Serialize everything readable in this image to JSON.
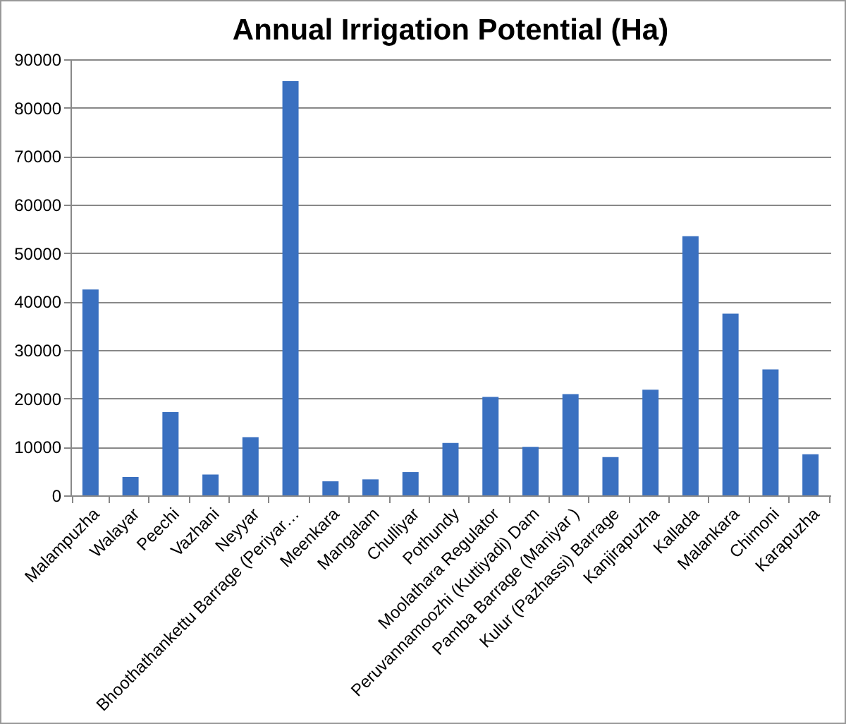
{
  "chart_data": {
    "type": "bar",
    "title": "Annual Irrigation Potential (Ha)",
    "categories": [
      "Malampuzha",
      "Walayar",
      "Peechi",
      "Vazhani",
      "Neyyar",
      "Bhoothathankettu Barrage (Periyar…",
      "Meenkara",
      "Mangalam",
      "Chulliyar",
      "Pothundy",
      "Moolathara Regulator",
      "Peruvannamoozhi (Kuttiyadi) Dam",
      "Pamba Barrage (Maniyar )",
      "Kulur (Pazhassi) Barrage",
      "Kanjirapuzha",
      "Kallada",
      "Malankara",
      "Chimoni",
      "Karapuzha"
    ],
    "values": [
      42500,
      3800,
      17200,
      4300,
      12000,
      85500,
      2900,
      3300,
      4800,
      10800,
      20300,
      10000,
      20900,
      7900,
      21800,
      53500,
      37500,
      26000,
      8500
    ],
    "color": "#3a70c0",
    "ylim": [
      0,
      90000
    ],
    "yticks": [
      0,
      10000,
      20000,
      30000,
      40000,
      50000,
      60000,
      70000,
      80000,
      90000
    ],
    "grid": "y"
  }
}
